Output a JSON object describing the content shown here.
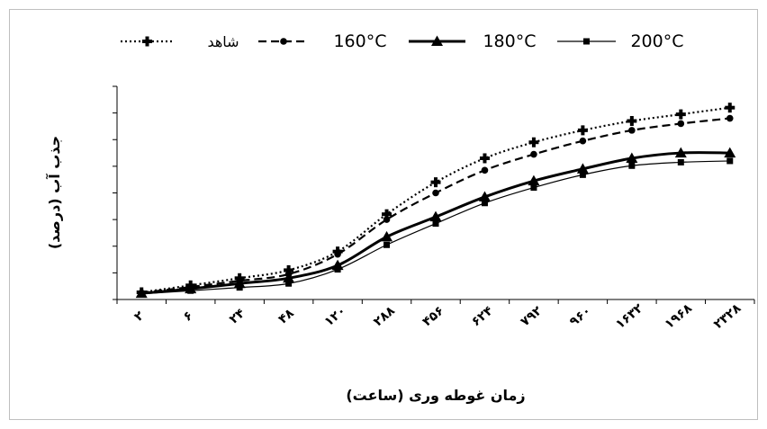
{
  "chart_data": {
    "type": "line",
    "xlabel": "زمان غوطه وری (ساعت)",
    "ylabel": "جذب آب (درصد)",
    "categories": [
      "۲",
      "۶",
      "۲۴",
      "۴۸",
      "۱۲۰",
      "۲۸۸",
      "۴۵۶",
      "۶۲۴",
      "۷۹۲",
      "۹۶۰",
      "۱۶۳۲",
      "۱۹۶۸",
      "۲۳۲۸"
    ],
    "ylim": [
      0,
      8
    ],
    "y_ticks": [
      0,
      1,
      2,
      3,
      4,
      5,
      6,
      7,
      8
    ],
    "y_tick_labels_shown": false,
    "grid": false,
    "legend_position": "top",
    "series": [
      {
        "name": "شاهد",
        "marker": "plus",
        "line_style": "dotted",
        "line_width": 2.2,
        "color": "#000000",
        "values": [
          0.27,
          0.53,
          0.8,
          1.1,
          1.8,
          3.2,
          4.4,
          5.3,
          5.9,
          6.35,
          6.7,
          6.95,
          7.2
        ]
      },
      {
        "name": "160°C",
        "marker": "circle",
        "line_style": "dashed",
        "line_width": 2.2,
        "color": "#000000",
        "values": [
          0.25,
          0.47,
          0.7,
          0.95,
          1.7,
          3.0,
          4.0,
          4.85,
          5.45,
          5.95,
          6.35,
          6.6,
          6.8
        ]
      },
      {
        "name": "180°C",
        "marker": "triangle",
        "line_style": "solid",
        "line_width": 3,
        "color": "#000000",
        "values": [
          0.23,
          0.4,
          0.6,
          0.8,
          1.28,
          2.35,
          3.1,
          3.85,
          4.45,
          4.9,
          5.3,
          5.5,
          5.5
        ]
      },
      {
        "name": "200°C",
        "marker": "square",
        "line_style": "solid",
        "line_width": 1.2,
        "color": "#000000",
        "values": [
          0.21,
          0.33,
          0.45,
          0.6,
          1.13,
          2.05,
          2.85,
          3.62,
          4.2,
          4.68,
          5.02,
          5.15,
          5.2
        ]
      }
    ]
  }
}
